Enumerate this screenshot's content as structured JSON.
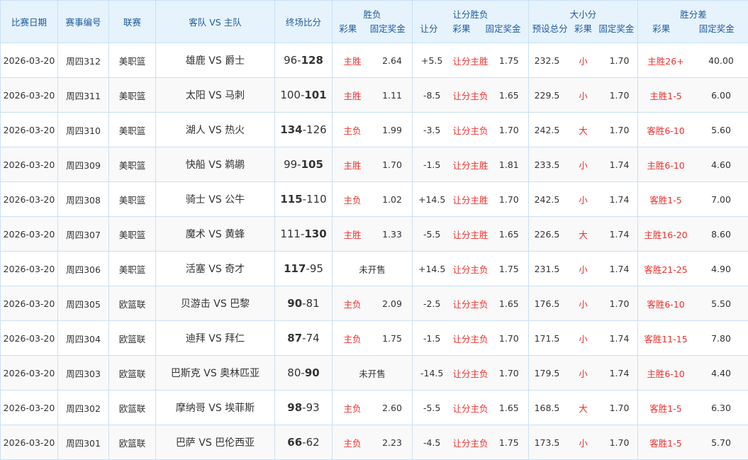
{
  "headers": {
    "date": "比赛日期",
    "no": "赛事编号",
    "league": "联赛",
    "teams": "客队 VS 主队",
    "score": "终场比分",
    "wl": {
      "title": "胜负",
      "result": "彩果",
      "odds": "固定奖金"
    },
    "hwl": {
      "title": "让分胜负",
      "handicap": "让分",
      "result": "彩果",
      "odds": "固定奖金"
    },
    "ou": {
      "title": "大小分",
      "line": "预设总分",
      "result": "彩果",
      "odds": "固定奖金"
    },
    "diff": {
      "title": "胜分差",
      "result": "彩果",
      "odds": "固定奖金"
    }
  },
  "vs": "VS",
  "not_on_sale": "未开售",
  "rows": [
    {
      "date": "2026-03-20",
      "no": "周四312",
      "league": "美职篮",
      "away": "雄鹿",
      "home": "爵士",
      "as": "96",
      "hs": "128",
      "wl": "主胜",
      "wlo": "2.64",
      "hc": "+5.5",
      "hr": "让分主胜",
      "ho": "1.75",
      "line": "232.5",
      "our": "小",
      "ouo": "1.70",
      "dr": "主胜26+",
      "do": "40.00"
    },
    {
      "date": "2026-03-20",
      "no": "周四311",
      "league": "美职篮",
      "away": "太阳",
      "home": "马刺",
      "as": "100",
      "hs": "101",
      "wl": "主胜",
      "wlo": "1.11",
      "hc": "-8.5",
      "hr": "让分主负",
      "ho": "1.65",
      "line": "229.5",
      "our": "小",
      "ouo": "1.70",
      "dr": "主胜1-5",
      "do": "6.00"
    },
    {
      "date": "2026-03-20",
      "no": "周四310",
      "league": "美职篮",
      "away": "湖人",
      "home": "热火",
      "as": "134",
      "hs": "126",
      "wl": "主负",
      "wlo": "1.99",
      "hc": "-3.5",
      "hr": "让分主负",
      "ho": "1.70",
      "line": "242.5",
      "our": "大",
      "ouo": "1.70",
      "dr": "客胜6-10",
      "do": "5.60"
    },
    {
      "date": "2026-03-20",
      "no": "周四309",
      "league": "美职篮",
      "away": "快船",
      "home": "鹈鹕",
      "as": "99",
      "hs": "105",
      "wl": "主胜",
      "wlo": "1.70",
      "hc": "-1.5",
      "hr": "让分主胜",
      "ho": "1.81",
      "line": "233.5",
      "our": "小",
      "ouo": "1.74",
      "dr": "主胜6-10",
      "do": "4.60"
    },
    {
      "date": "2026-03-20",
      "no": "周四308",
      "league": "美职篮",
      "away": "骑士",
      "home": "公牛",
      "as": "115",
      "hs": "110",
      "wl": "主负",
      "wlo": "1.02",
      "hc": "+14.5",
      "hr": "让分主胜",
      "ho": "1.70",
      "line": "242.5",
      "our": "小",
      "ouo": "1.74",
      "dr": "客胜1-5",
      "do": "7.00"
    },
    {
      "date": "2026-03-20",
      "no": "周四307",
      "league": "美职篮",
      "away": "魔术",
      "home": "黄蜂",
      "as": "111",
      "hs": "130",
      "wl": "主胜",
      "wlo": "1.33",
      "hc": "-5.5",
      "hr": "让分主胜",
      "ho": "1.65",
      "line": "226.5",
      "our": "大",
      "ouo": "1.74",
      "dr": "主胜16-20",
      "do": "8.60"
    },
    {
      "date": "2026-03-20",
      "no": "周四306",
      "league": "美职篮",
      "away": "活塞",
      "home": "奇才",
      "as": "117",
      "hs": "95",
      "wl": "",
      "wlo": "",
      "hc": "+14.5",
      "hr": "让分主负",
      "ho": "1.75",
      "line": "231.5",
      "our": "小",
      "ouo": "1.74",
      "dr": "客胜21-25",
      "do": "4.90"
    },
    {
      "date": "2026-03-20",
      "no": "周四305",
      "league": "欧篮联",
      "away": "贝游击",
      "home": "巴黎",
      "as": "90",
      "hs": "81",
      "wl": "主负",
      "wlo": "2.09",
      "hc": "-2.5",
      "hr": "让分主负",
      "ho": "1.65",
      "line": "176.5",
      "our": "小",
      "ouo": "1.70",
      "dr": "客胜6-10",
      "do": "5.50"
    },
    {
      "date": "2026-03-20",
      "no": "周四304",
      "league": "欧篮联",
      "away": "迪拜",
      "home": "拜仁",
      "as": "87",
      "hs": "74",
      "wl": "主负",
      "wlo": "1.75",
      "hc": "-1.5",
      "hr": "让分主负",
      "ho": "1.70",
      "line": "171.5",
      "our": "小",
      "ouo": "1.74",
      "dr": "客胜11-15",
      "do": "7.80"
    },
    {
      "date": "2026-03-20",
      "no": "周四303",
      "league": "欧篮联",
      "away": "巴斯克",
      "home": "奥林匹亚",
      "as": "80",
      "hs": "90",
      "wl": "",
      "wlo": "",
      "hc": "-14.5",
      "hr": "让分主负",
      "ho": "1.70",
      "line": "179.5",
      "our": "小",
      "ouo": "1.74",
      "dr": "主胜6-10",
      "do": "4.40"
    },
    {
      "date": "2026-03-20",
      "no": "周四302",
      "league": "欧篮联",
      "away": "摩纳哥",
      "home": "埃菲斯",
      "as": "98",
      "hs": "93",
      "wl": "主负",
      "wlo": "2.60",
      "hc": "-5.5",
      "hr": "让分主负",
      "ho": "1.65",
      "line": "168.5",
      "our": "大",
      "ouo": "1.70",
      "dr": "客胜1-5",
      "do": "6.30"
    },
    {
      "date": "2026-03-20",
      "no": "周四301",
      "league": "欧篮联",
      "away": "巴萨",
      "home": "巴伦西亚",
      "as": "66",
      "hs": "62",
      "wl": "主负",
      "wlo": "2.23",
      "hc": "-4.5",
      "hr": "让分主负",
      "ho": "1.75",
      "line": "173.5",
      "our": "小",
      "ouo": "1.70",
      "dr": "客胜1-5",
      "do": "5.70"
    }
  ],
  "colors": {
    "header_bg": "#e6f3fd",
    "header_text": "#1f5a9e",
    "result_red": "#f0302e",
    "border": "#c9e0f3"
  }
}
